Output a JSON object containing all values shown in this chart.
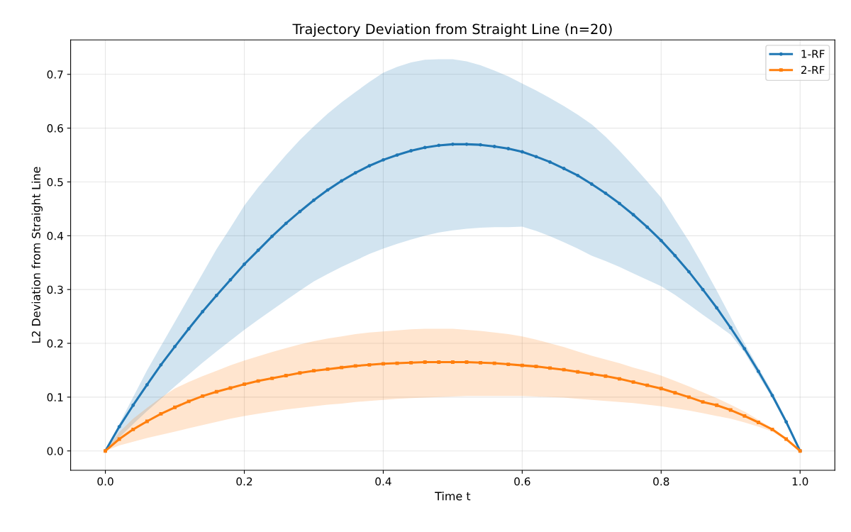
{
  "chart_data": {
    "type": "line",
    "title": "Trajectory Deviation from Straight Line (n=20)",
    "xlabel": "Time t",
    "ylabel": "L2 Deviation from Straight Line",
    "x": [
      0,
      0.02,
      0.04,
      0.06,
      0.08,
      0.1,
      0.12,
      0.14,
      0.16,
      0.18,
      0.2,
      0.22,
      0.24,
      0.26,
      0.28,
      0.3,
      0.32,
      0.34,
      0.36,
      0.38,
      0.4,
      0.42,
      0.44,
      0.46,
      0.48,
      0.5,
      0.52,
      0.54,
      0.56,
      0.58,
      0.6,
      0.62,
      0.64,
      0.66,
      0.68,
      0.7,
      0.72,
      0.74,
      0.76,
      0.78,
      0.8,
      0.82,
      0.84,
      0.86,
      0.88,
      0.9,
      0.92,
      0.94,
      0.96,
      0.98,
      1.0
    ],
    "series": [
      {
        "name": "1-RF",
        "color": "#1f77b4",
        "marker": "circle",
        "values": [
          0,
          0.045,
          0.085,
          0.123,
          0.16,
          0.194,
          0.227,
          0.259,
          0.289,
          0.318,
          0.347,
          0.373,
          0.399,
          0.423,
          0.445,
          0.466,
          0.485,
          0.502,
          0.517,
          0.53,
          0.541,
          0.55,
          0.558,
          0.564,
          0.568,
          0.57,
          0.57,
          0.569,
          0.566,
          0.562,
          0.556,
          0.547,
          0.537,
          0.525,
          0.512,
          0.496,
          0.479,
          0.46,
          0.439,
          0.416,
          0.391,
          0.363,
          0.333,
          0.3,
          0.266,
          0.229,
          0.19,
          0.148,
          0.103,
          0.054,
          0
        ],
        "lower": [
          0,
          0.025,
          0.05,
          0.074,
          0.097,
          0.12,
          0.142,
          0.164,
          0.185,
          0.205,
          0.225,
          0.244,
          0.262,
          0.28,
          0.298,
          0.315,
          0.329,
          0.342,
          0.354,
          0.366,
          0.376,
          0.385,
          0.393,
          0.4,
          0.406,
          0.41,
          0.413,
          0.415,
          0.416,
          0.416,
          0.417,
          0.409,
          0.399,
          0.388,
          0.376,
          0.363,
          0.353,
          0.342,
          0.33,
          0.318,
          0.306,
          0.29,
          0.272,
          0.253,
          0.235,
          0.216,
          0.183,
          0.14,
          0.098,
          0.05,
          0
        ],
        "upper": [
          0,
          0.05,
          0.1,
          0.15,
          0.195,
          0.24,
          0.285,
          0.33,
          0.375,
          0.415,
          0.456,
          0.49,
          0.52,
          0.55,
          0.578,
          0.603,
          0.627,
          0.648,
          0.667,
          0.686,
          0.703,
          0.714,
          0.722,
          0.727,
          0.728,
          0.728,
          0.724,
          0.717,
          0.707,
          0.696,
          0.683,
          0.67,
          0.656,
          0.641,
          0.625,
          0.607,
          0.584,
          0.558,
          0.53,
          0.501,
          0.471,
          0.43,
          0.39,
          0.345,
          0.298,
          0.249,
          0.2,
          0.155,
          0.11,
          0.058,
          0
        ]
      },
      {
        "name": "2-RF",
        "color": "#ff7f0e",
        "marker": "square",
        "values": [
          0,
          0.022,
          0.04,
          0.055,
          0.069,
          0.081,
          0.092,
          0.102,
          0.11,
          0.117,
          0.124,
          0.13,
          0.135,
          0.14,
          0.145,
          0.149,
          0.152,
          0.155,
          0.158,
          0.16,
          0.162,
          0.163,
          0.164,
          0.165,
          0.165,
          0.165,
          0.165,
          0.164,
          0.163,
          0.161,
          0.159,
          0.157,
          0.154,
          0.151,
          0.147,
          0.143,
          0.139,
          0.134,
          0.128,
          0.122,
          0.116,
          0.108,
          0.1,
          0.091,
          0.085,
          0.076,
          0.065,
          0.053,
          0.04,
          0.022,
          0
        ],
        "lower": [
          0,
          0.01,
          0.017,
          0.024,
          0.03,
          0.036,
          0.042,
          0.048,
          0.054,
          0.06,
          0.065,
          0.069,
          0.073,
          0.077,
          0.08,
          0.083,
          0.086,
          0.088,
          0.091,
          0.093,
          0.095,
          0.097,
          0.098,
          0.099,
          0.1,
          0.101,
          0.102,
          0.102,
          0.102,
          0.102,
          0.102,
          0.101,
          0.1,
          0.099,
          0.097,
          0.095,
          0.093,
          0.091,
          0.089,
          0.086,
          0.083,
          0.079,
          0.075,
          0.07,
          0.065,
          0.06,
          0.053,
          0.045,
          0.036,
          0.02,
          0
        ],
        "upper": [
          0,
          0.035,
          0.06,
          0.08,
          0.099,
          0.116,
          0.128,
          0.139,
          0.149,
          0.159,
          0.168,
          0.176,
          0.184,
          0.191,
          0.198,
          0.204,
          0.209,
          0.213,
          0.217,
          0.22,
          0.222,
          0.224,
          0.226,
          0.227,
          0.227,
          0.227,
          0.225,
          0.223,
          0.22,
          0.217,
          0.213,
          0.207,
          0.2,
          0.193,
          0.185,
          0.177,
          0.17,
          0.163,
          0.155,
          0.148,
          0.14,
          0.13,
          0.12,
          0.109,
          0.098,
          0.086,
          0.073,
          0.058,
          0.042,
          0.024,
          0
        ]
      }
    ],
    "xlim": [
      -0.05,
      1.05
    ],
    "ylim": [
      -0.036,
      0.764
    ],
    "xticks": [
      {
        "value": 0,
        "label": "0.0"
      },
      0.2,
      0.4,
      0.6,
      0.8,
      {
        "value": 1,
        "label": "1.0"
      }
    ],
    "yticks": [
      {
        "value": 0,
        "label": "0.0"
      },
      0.1,
      0.2,
      0.3,
      0.4,
      0.5,
      0.6,
      0.7
    ],
    "grid": true,
    "legend": "top right",
    "line_style": "solid"
  }
}
